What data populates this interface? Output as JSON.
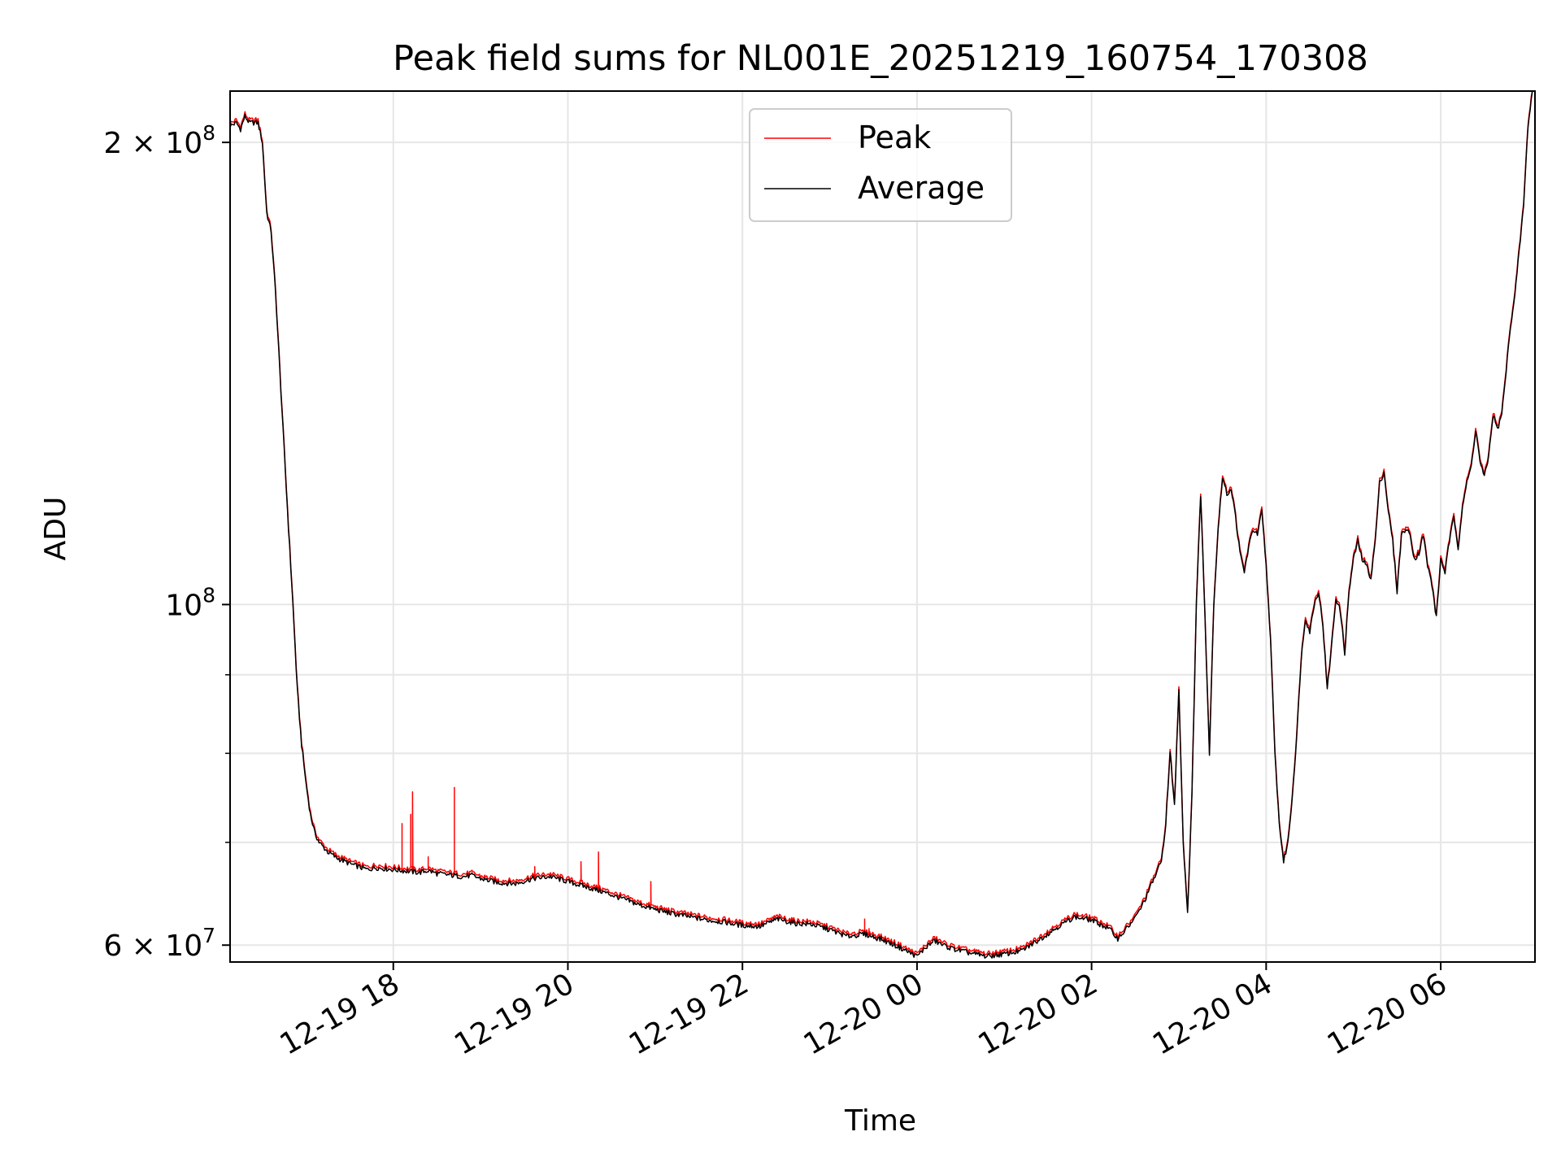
{
  "chart_data": {
    "type": "line",
    "title": "Peak field sums for NL001E_20251219_160754_170308",
    "xlabel": "Time",
    "ylabel": "ADU",
    "yscale": "log",
    "xlim": [
      16.13,
      31.08
    ],
    "ylim": [
      58500000,
      216000000
    ],
    "grid": true,
    "legend_position": "top-center",
    "x_ticks": [
      {
        "value": 18,
        "label": "12-19 18"
      },
      {
        "value": 20,
        "label": "12-19 20"
      },
      {
        "value": 22,
        "label": "12-19 22"
      },
      {
        "value": 24,
        "label": "12-20 00"
      },
      {
        "value": 26,
        "label": "12-20 02"
      },
      {
        "value": 28,
        "label": "12-20 04"
      },
      {
        "value": 30,
        "label": "12-20 06"
      }
    ],
    "y_major_ticks": [
      {
        "value": 60000000,
        "mantissa": "6 × 10",
        "exponent": "7"
      },
      {
        "value": 100000000,
        "mantissa": "10",
        "exponent": "8"
      },
      {
        "value": 200000000,
        "mantissa": "2 × 10",
        "exponent": "8"
      }
    ],
    "y_minor_ticks": [
      70000000,
      80000000,
      90000000
    ],
    "series": [
      {
        "name": "Average",
        "color": "#000000",
        "x": [
          16.13,
          16.2,
          16.25,
          16.3,
          16.35,
          16.4,
          16.45,
          16.5,
          16.55,
          16.6,
          16.65,
          16.7,
          16.75,
          16.8,
          16.85,
          16.9,
          16.95,
          17.0,
          17.05,
          17.1,
          17.15,
          17.2,
          17.25,
          17.3,
          17.35,
          17.4,
          17.5,
          17.6,
          17.7,
          17.8,
          17.9,
          18.0,
          18.1,
          18.2,
          18.3,
          18.4,
          18.5,
          18.6,
          18.7,
          18.8,
          18.9,
          19.0,
          19.2,
          19.4,
          19.6,
          19.8,
          20.0,
          20.2,
          20.4,
          20.6,
          20.8,
          21.0,
          21.2,
          21.4,
          21.6,
          21.8,
          22.0,
          22.2,
          22.4,
          22.6,
          22.8,
          23.0,
          23.2,
          23.4,
          23.6,
          23.8,
          24.0,
          24.1,
          24.2,
          24.3,
          24.4,
          24.6,
          24.8,
          25.0,
          25.2,
          25.4,
          25.6,
          25.8,
          26.0,
          26.2,
          26.3,
          26.4,
          26.5,
          26.6,
          26.7,
          26.8,
          26.85,
          26.9,
          26.95,
          27.0,
          27.05,
          27.1,
          27.15,
          27.2,
          27.25,
          27.3,
          27.35,
          27.4,
          27.45,
          27.5,
          27.55,
          27.6,
          27.65,
          27.7,
          27.75,
          27.8,
          27.85,
          27.9,
          27.95,
          28.0,
          28.05,
          28.1,
          28.15,
          28.2,
          28.25,
          28.3,
          28.35,
          28.4,
          28.45,
          28.5,
          28.55,
          28.6,
          28.65,
          28.7,
          28.75,
          28.8,
          28.85,
          28.9,
          28.95,
          29.0,
          29.05,
          29.1,
          29.15,
          29.2,
          29.25,
          29.3,
          29.35,
          29.4,
          29.45,
          29.5,
          29.55,
          29.6,
          29.65,
          29.7,
          29.75,
          29.8,
          29.85,
          29.9,
          29.95,
          30.0,
          30.05,
          30.1,
          30.15,
          30.2,
          30.25,
          30.3,
          30.35,
          30.4,
          30.45,
          30.5,
          30.55,
          30.6,
          30.65,
          30.7,
          30.75,
          30.8,
          30.85,
          30.9,
          30.95,
          31.0,
          31.05
        ],
        "y": [
          205000000,
          206000000,
          204000000,
          208000000,
          206000000,
          206000000,
          206000000,
          200000000,
          180000000,
          175000000,
          160000000,
          142000000,
          126000000,
          112000000,
          100000000,
          88000000,
          81000000,
          76500000,
          73000000,
          71000000,
          70000000,
          69500000,
          69000000,
          68700000,
          68400000,
          68200000,
          67800000,
          67500000,
          67200000,
          67400000,
          67300000,
          67200000,
          67100000,
          67000000,
          66900000,
          67100000,
          66800000,
          66700000,
          66600000,
          66500000,
          66600000,
          66300000,
          65900000,
          65800000,
          66300000,
          66500000,
          66000000,
          65500000,
          65000000,
          64400000,
          63800000,
          63300000,
          62900000,
          62600000,
          62300000,
          62100000,
          61800000,
          61700000,
          62400000,
          62000000,
          61900000,
          61400000,
          60800000,
          61000000,
          60500000,
          59800000,
          59000000,
          59800000,
          60400000,
          60000000,
          59700000,
          59300000,
          59000000,
          59200000,
          59500000,
          60500000,
          61600000,
          62600000,
          62300000,
          61500000,
          60600000,
          61500000,
          62500000,
          64000000,
          66000000,
          68000000,
          72000000,
          80000000,
          74000000,
          88000000,
          70000000,
          63000000,
          75000000,
          100000000,
          118000000,
          98000000,
          80000000,
          100000000,
          112000000,
          121000000,
          118000000,
          119000000,
          114000000,
          108000000,
          105000000,
          109000000,
          112000000,
          111000000,
          115000000,
          106000000,
          95000000,
          80000000,
          72000000,
          68000000,
          70000000,
          75000000,
          82000000,
          92000000,
          98000000,
          96000000,
          100000000,
          102000000,
          97000000,
          88000000,
          94000000,
          101000000,
          99000000,
          93000000,
          102000000,
          107000000,
          110000000,
          107000000,
          106000000,
          104000000,
          110000000,
          120000000,
          122000000,
          115000000,
          110000000,
          102000000,
          111000000,
          112000000,
          111000000,
          107000000,
          108000000,
          111000000,
          106000000,
          103000000,
          98000000,
          107000000,
          105000000,
          110000000,
          114000000,
          109000000,
          116000000,
          120000000,
          123000000,
          130000000,
          124000000,
          121000000,
          125000000,
          133000000,
          130000000,
          133000000,
          142000000,
          152000000,
          159000000,
          170000000,
          182000000,
          205000000,
          216000000
        ]
      },
      {
        "name": "Peak",
        "color": "#ff0000",
        "spikes": [
          {
            "x": 18.1,
            "y": 72000000
          },
          {
            "x": 18.2,
            "y": 73000000
          },
          {
            "x": 18.22,
            "y": 75500000
          },
          {
            "x": 18.4,
            "y": 68500000
          },
          {
            "x": 18.7,
            "y": 76000000
          },
          {
            "x": 19.62,
            "y": 67500000
          },
          {
            "x": 20.15,
            "y": 68000000
          },
          {
            "x": 20.35,
            "y": 69000000
          },
          {
            "x": 20.95,
            "y": 66000000
          },
          {
            "x": 23.4,
            "y": 62400000
          },
          {
            "x": 23.45,
            "y": 61500000
          }
        ]
      }
    ]
  }
}
